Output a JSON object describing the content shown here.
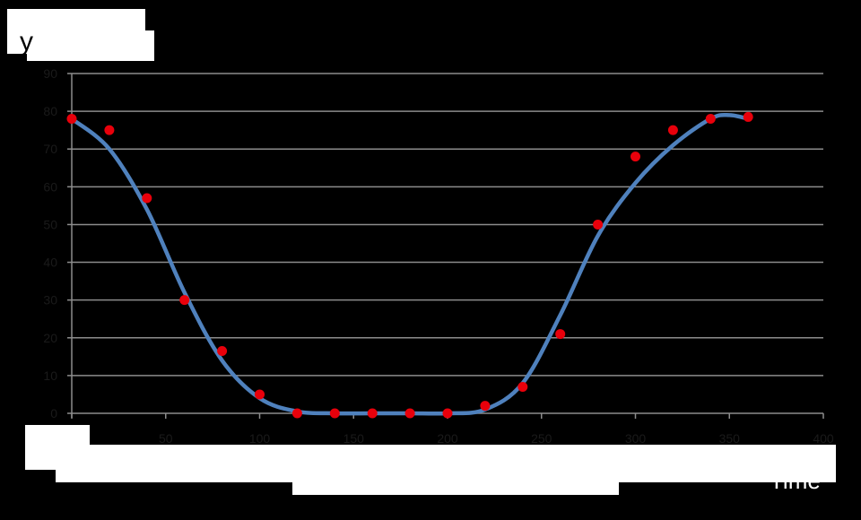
{
  "chart_data": {
    "type": "scatter",
    "ylabel": "y",
    "xlabel": "Time",
    "xlim": [
      0,
      400
    ],
    "ylim": [
      0,
      90
    ],
    "x_ticks": [
      0,
      50,
      100,
      150,
      200,
      250,
      300,
      350,
      400
    ],
    "y_ticks": [
      0,
      10,
      20,
      30,
      40,
      50,
      60,
      70,
      80,
      90
    ],
    "grid": "horizontal",
    "legend": "none",
    "colors": {
      "points": "#e8000b",
      "curve": "#4f81bd",
      "grid": "#8c8c8c",
      "background": "#000000"
    },
    "series": [
      {
        "kind": "markers",
        "x": [
          0,
          20,
          40,
          60,
          80,
          100,
          120,
          140,
          160,
          180,
          200,
          220,
          240,
          260,
          280,
          300,
          320,
          340,
          360
        ],
        "y": [
          78,
          75,
          57,
          30,
          16.5,
          5,
          0,
          0,
          0,
          0,
          0,
          2,
          7,
          21,
          50,
          68,
          75,
          78,
          78.5
        ]
      },
      {
        "kind": "smooth-line",
        "x": [
          0,
          20,
          40,
          60,
          80,
          100,
          120,
          140,
          160,
          180,
          200,
          220,
          240,
          260,
          280,
          300,
          320,
          340,
          350,
          360
        ],
        "y": [
          78,
          70,
          54,
          32,
          14,
          4,
          0.5,
          0,
          0,
          0,
          0,
          1,
          8,
          26,
          47,
          61,
          71,
          78,
          79,
          78
        ]
      }
    ]
  }
}
